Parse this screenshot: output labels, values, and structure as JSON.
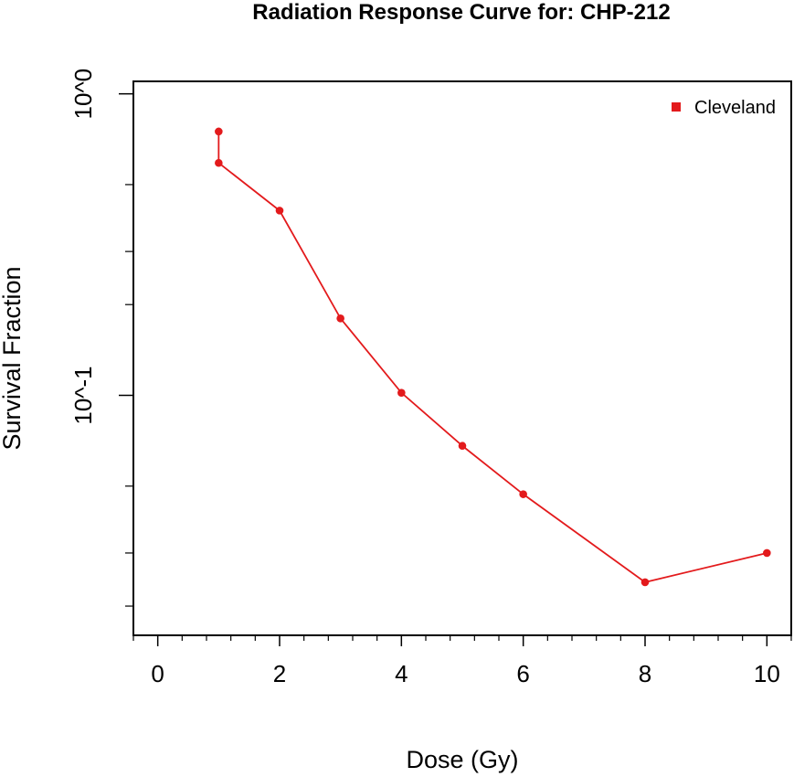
{
  "chart_data": {
    "type": "line",
    "title": "Radiation Response Curve for: CHP-212",
    "xlabel": "Dose (Gy)",
    "ylabel": "Survival Fraction",
    "x_scale": "linear",
    "y_scale": "log",
    "xlim": [
      -0.4,
      10.4
    ],
    "ylim": [
      0.016,
      1.1
    ],
    "x_ticks": [
      "0",
      "2",
      "4",
      "6",
      "8",
      "10"
    ],
    "y_ticks": [
      "10^-1",
      "10^0"
    ],
    "grid": false,
    "legend_position": "top-right",
    "color": "#e31a1c",
    "series": [
      {
        "name": "Cleveland",
        "color": "#e31a1c",
        "x": [
          1,
          1,
          2,
          3,
          4,
          5,
          6,
          8,
          10
        ],
        "y": [
          0.75,
          0.59,
          0.41,
          0.18,
          0.102,
          0.068,
          0.047,
          0.024,
          0.03
        ]
      }
    ]
  }
}
